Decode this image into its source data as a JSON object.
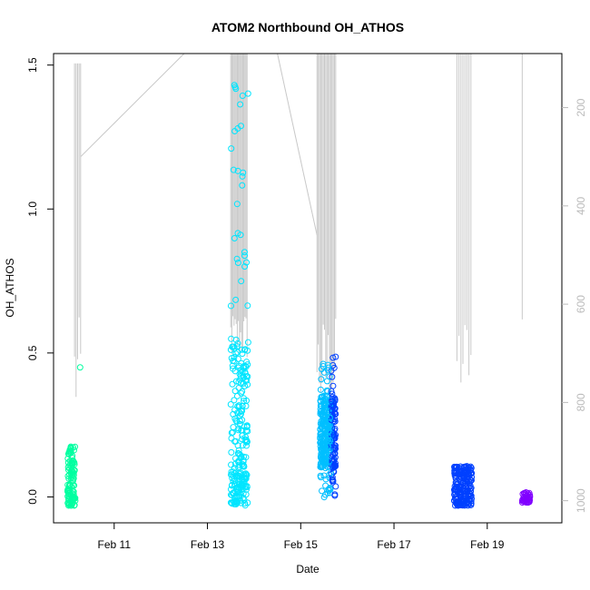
{
  "chart_data": {
    "type": "scatter",
    "title": "ATOM2 Northbound OH_ATHOS",
    "xlabel": "Date",
    "ylabel": "OH_ATHOS",
    "x_range_days": [
      9.7,
      20.6
    ],
    "ylim": [
      -0.09,
      1.54
    ],
    "x_ticks": [
      {
        "label": "Feb 11",
        "day": 11
      },
      {
        "label": "Feb 13",
        "day": 13
      },
      {
        "label": "Feb 15",
        "day": 15
      },
      {
        "label": "Feb 17",
        "day": 17
      },
      {
        "label": "Feb 19",
        "day": 19
      }
    ],
    "y_ticks": [
      "0.0",
      "0.5",
      "1.0",
      "1.5"
    ],
    "y2_ticks": [
      "200",
      "400",
      "600",
      "800",
      "1000"
    ],
    "y2_range": [
      90,
      1045
    ],
    "grid": false,
    "legend": "none",
    "color_scheme": "rainbow (cyan-green to magenta, by time)",
    "point_colors": [
      "#00FFA0",
      "#00E5FF",
      "#00BFFF",
      "#0040FF",
      "#8000FF",
      "#FF00FF"
    ],
    "altitude_color": "#c8c8c8",
    "series": [
      {
        "values": [
          {
            "x_range": [
              "2011-02-10 00:00",
              "2011-02-10 04:00"
            ],
            "y_range": [
              -0.03,
              0.2
            ],
            "note": "dense cluster, extra point at 0.45"
          },
          {
            "x_range": [
              "2011-02-13 12:00",
              "2011-02-13 21:00"
            ],
            "y_range": [
              -0.03,
              1.47
            ]
          },
          {
            "x_range": [
              "2011-02-15 10:00",
              "2011-02-15 18:00"
            ],
            "y_range": [
              -0.01,
              0.49
            ]
          },
          {
            "x_range": [
              "2011-02-18 07:00",
              "2011-02-18 16:00"
            ],
            "y_range": [
              -0.03,
              0.25
            ]
          },
          {
            "x_range": [
              "2011-02-19 18:00",
              "2011-02-19 22:00"
            ],
            "y_range": [
              -0.02,
              0.02
            ]
          }
        ]
      }
    ]
  }
}
